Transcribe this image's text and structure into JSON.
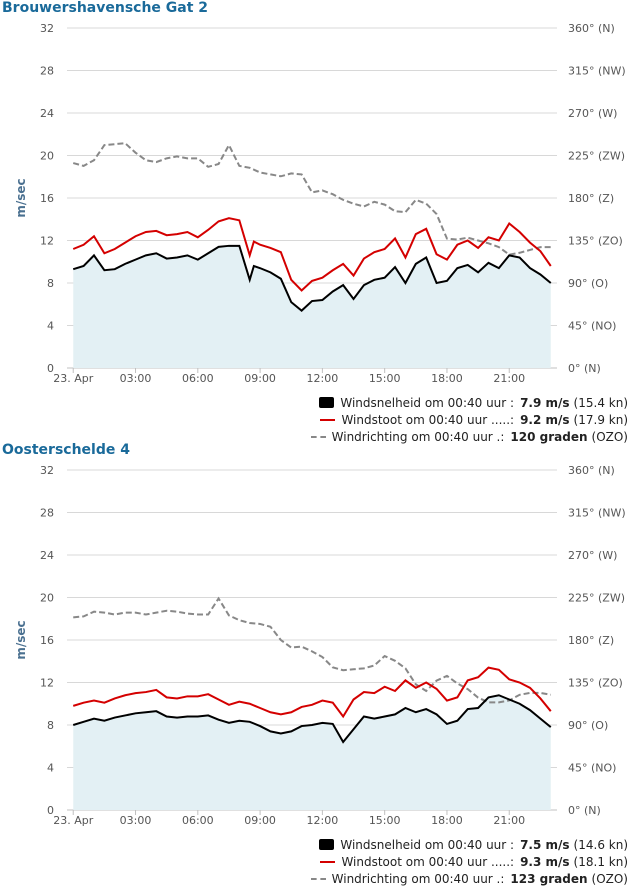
{
  "colors": {
    "title": "#1a6a9a",
    "speed": "#000000",
    "gust": "#d40000",
    "direction": "#888888",
    "area": "#e3f0f4",
    "grid": "#d8d8d8",
    "axis_text": "#555555"
  },
  "panels": [
    {
      "title": "Brouwershavensche Gat 2",
      "legend": [
        {
          "label": "Windsnelheid om 00:40 uur :",
          "value": "7.9 m/s",
          "extra": "(15.4 kn)"
        },
        {
          "label": "Windstoot om 00:40 uur .....:",
          "value": "9.2 m/s",
          "extra": "(17.9 kn)"
        },
        {
          "label": "Windrichting om 00:40 uur .:",
          "value": "120 graden",
          "extra": "(OZO)"
        }
      ]
    },
    {
      "title": "Oosterschelde 4",
      "legend": [
        {
          "label": "Windsnelheid om 00:40 uur :",
          "value": "7.5 m/s",
          "extra": "(14.6 kn)"
        },
        {
          "label": "Windstoot om 00:40 uur .....:",
          "value": "9.3 m/s",
          "extra": "(18.1 kn)"
        },
        {
          "label": "Windrichting om 00:40 uur .:",
          "value": "123 graden",
          "extra": "(OZO)"
        }
      ]
    }
  ],
  "chart_data": [
    {
      "type": "line",
      "title": "Brouwershavensche Gat 2",
      "ylabel": "m/sec",
      "ylim": [
        0,
        32
      ],
      "y_ticks": [
        "0",
        "4",
        "8",
        "12",
        "16",
        "20",
        "24",
        "28",
        "32"
      ],
      "y2_ticks": [
        "0° (N)",
        "45° (NO)",
        "90° (O)",
        "135° (ZO)",
        "180° (Z)",
        "225° (ZW)",
        "270° (W)",
        "315° (NW)",
        "360° (N)"
      ],
      "x_hours_range": [
        -0.3,
        23.3
      ],
      "x_ticks": [
        {
          "h": 0,
          "label": "23. Apr"
        },
        {
          "h": 3,
          "label": "03:00"
        },
        {
          "h": 6,
          "label": "06:00"
        },
        {
          "h": 9,
          "label": "09:00"
        },
        {
          "h": 12,
          "label": "12:00"
        },
        {
          "h": 15,
          "label": "15:00"
        },
        {
          "h": 18,
          "label": "18:00"
        },
        {
          "h": 21,
          "label": "21:00"
        }
      ],
      "legend_placement": "bottom-right",
      "series": [
        {
          "name": "Windsnelheid",
          "unit": "m/s",
          "x": [
            0,
            0.5,
            1,
            1.5,
            2,
            2.5,
            3,
            3.5,
            4,
            4.5,
            5,
            5.5,
            6,
            6.5,
            7,
            7.5,
            8,
            8.5,
            8.7,
            9,
            9.5,
            10,
            10.5,
            11,
            11.5,
            12,
            12.5,
            13,
            13.5,
            14,
            14.5,
            15,
            15.5,
            16,
            16.5,
            17,
            17.5,
            18,
            18.5,
            19,
            19.5,
            20,
            20.5,
            21,
            21.5,
            22,
            22.5,
            23
          ],
          "y": [
            9.3,
            9.6,
            10.6,
            9.2,
            9.3,
            9.8,
            10.2,
            10.6,
            10.8,
            10.3,
            10.4,
            10.6,
            10.2,
            10.8,
            11.4,
            11.5,
            11.5,
            8.3,
            9.6,
            9.4,
            9.0,
            8.4,
            6.2,
            5.4,
            6.3,
            6.4,
            7.2,
            7.8,
            6.5,
            7.8,
            8.3,
            8.5,
            9.5,
            8.0,
            9.8,
            10.4,
            8.0,
            8.2,
            9.4,
            9.7,
            9.0,
            9.9,
            9.4,
            10.6,
            10.4,
            9.4,
            8.8,
            8.0
          ]
        },
        {
          "name": "Windstoot",
          "unit": "m/s",
          "x": [
            0,
            0.5,
            1,
            1.5,
            2,
            2.5,
            3,
            3.5,
            4,
            4.5,
            5,
            5.5,
            6,
            6.5,
            7,
            7.5,
            8,
            8.5,
            8.7,
            9,
            9.5,
            10,
            10.5,
            11,
            11.5,
            12,
            12.5,
            13,
            13.5,
            14,
            14.5,
            15,
            15.5,
            16,
            16.5,
            17,
            17.5,
            18,
            18.5,
            19,
            19.5,
            20,
            20.5,
            21,
            21.5,
            22,
            22.5,
            23
          ],
          "y": [
            11.2,
            11.6,
            12.4,
            10.8,
            11.2,
            11.8,
            12.4,
            12.8,
            12.9,
            12.5,
            12.6,
            12.8,
            12.3,
            13.0,
            13.8,
            14.1,
            13.9,
            10.6,
            11.9,
            11.6,
            11.3,
            10.9,
            8.3,
            7.3,
            8.2,
            8.5,
            9.2,
            9.8,
            8.7,
            10.3,
            10.9,
            11.2,
            12.2,
            10.4,
            12.6,
            13.1,
            10.7,
            10.2,
            11.6,
            12.0,
            11.3,
            12.3,
            12.0,
            13.6,
            12.8,
            11.8,
            11.0,
            9.6
          ]
        },
        {
          "name": "Windrichting",
          "unit": "graden",
          "x": [
            0,
            0.5,
            1,
            1.5,
            2,
            2.5,
            3,
            3.5,
            4,
            4.5,
            5,
            5.5,
            6,
            6.5,
            7,
            7.5,
            8,
            8.5,
            9,
            9.5,
            10,
            10.5,
            11,
            11.5,
            12,
            12.5,
            13,
            13.5,
            14,
            14.5,
            15,
            15.5,
            16,
            16.5,
            17,
            17.5,
            18,
            18.5,
            19,
            19.5,
            20,
            20.5,
            21,
            21.5,
            22,
            22.5,
            23
          ],
          "y": [
            217,
            214,
            220,
            236,
            237,
            238,
            228,
            220,
            218,
            222,
            224,
            222,
            222,
            213,
            216,
            236,
            214,
            212,
            207,
            205,
            203,
            206,
            205,
            186,
            188,
            184,
            178,
            174,
            171,
            176,
            173,
            166,
            165,
            178,
            174,
            163,
            137,
            136,
            138,
            135,
            132,
            128,
            120,
            122,
            125,
            128,
            128
          ]
        }
      ]
    },
    {
      "type": "line",
      "title": "Oosterschelde 4",
      "ylabel": "m/sec",
      "ylim": [
        0,
        32
      ],
      "y_ticks": [
        "0",
        "4",
        "8",
        "12",
        "16",
        "20",
        "24",
        "28",
        "32"
      ],
      "y2_ticks": [
        "0° (N)",
        "45° (NO)",
        "90° (O)",
        "135° (ZO)",
        "180° (Z)",
        "225° (ZW)",
        "270° (W)",
        "315° (NW)",
        "360° (N)"
      ],
      "x_hours_range": [
        -0.3,
        23.3
      ],
      "x_ticks": [
        {
          "h": 0,
          "label": "23. Apr"
        },
        {
          "h": 3,
          "label": "03:00"
        },
        {
          "h": 6,
          "label": "06:00"
        },
        {
          "h": 9,
          "label": "09:00"
        },
        {
          "h": 12,
          "label": "12:00"
        },
        {
          "h": 15,
          "label": "15:00"
        },
        {
          "h": 18,
          "label": "18:00"
        },
        {
          "h": 21,
          "label": "21:00"
        }
      ],
      "legend_placement": "bottom-right",
      "series": [
        {
          "name": "Windsnelheid",
          "unit": "m/s",
          "x": [
            0,
            0.5,
            1,
            1.5,
            2,
            2.5,
            3,
            3.5,
            4,
            4.5,
            5,
            5.5,
            6,
            6.5,
            7,
            7.5,
            8,
            8.5,
            9,
            9.5,
            10,
            10.5,
            11,
            11.5,
            12,
            12.5,
            13,
            13.5,
            14,
            14.5,
            15,
            15.5,
            16,
            16.5,
            17,
            17.5,
            18,
            18.5,
            19,
            19.5,
            20,
            20.5,
            21,
            21.5,
            22,
            22.5,
            23
          ],
          "y": [
            8.0,
            8.3,
            8.6,
            8.4,
            8.7,
            8.9,
            9.1,
            9.2,
            9.3,
            8.8,
            8.7,
            8.8,
            8.8,
            8.9,
            8.5,
            8.2,
            8.4,
            8.3,
            7.9,
            7.4,
            7.2,
            7.4,
            7.9,
            8.0,
            8.2,
            8.1,
            6.4,
            7.6,
            8.8,
            8.6,
            8.8,
            9.0,
            9.6,
            9.2,
            9.5,
            9.0,
            8.1,
            8.4,
            9.5,
            9.6,
            10.6,
            10.8,
            10.4,
            10.0,
            9.4,
            8.6,
            7.8
          ]
        },
        {
          "name": "Windstoot",
          "unit": "m/s",
          "x": [
            0,
            0.5,
            1,
            1.5,
            2,
            2.5,
            3,
            3.5,
            4,
            4.5,
            5,
            5.5,
            6,
            6.5,
            7,
            7.5,
            8,
            8.5,
            9,
            9.5,
            10,
            10.5,
            11,
            11.5,
            12,
            12.5,
            13,
            13.5,
            14,
            14.5,
            15,
            15.5,
            16,
            16.5,
            17,
            17.5,
            18,
            18.5,
            19,
            19.5,
            20,
            20.5,
            21,
            21.5,
            22,
            22.5,
            23
          ],
          "y": [
            9.8,
            10.1,
            10.3,
            10.1,
            10.5,
            10.8,
            11.0,
            11.1,
            11.3,
            10.6,
            10.5,
            10.7,
            10.7,
            10.9,
            10.4,
            9.9,
            10.2,
            10.0,
            9.6,
            9.2,
            9.0,
            9.2,
            9.7,
            9.9,
            10.3,
            10.1,
            8.8,
            10.4,
            11.1,
            11.0,
            11.6,
            11.2,
            12.2,
            11.5,
            12.0,
            11.4,
            10.3,
            10.6,
            12.2,
            12.5,
            13.4,
            13.2,
            12.3,
            12.0,
            11.5,
            10.5,
            9.3
          ]
        },
        {
          "name": "Windrichting",
          "unit": "graden",
          "x": [
            0,
            0.5,
            1,
            1.5,
            2,
            2.5,
            3,
            3.5,
            4,
            4.5,
            5,
            5.5,
            6,
            6.5,
            7,
            7.5,
            8,
            8.5,
            9,
            9.5,
            10,
            10.5,
            11,
            11.5,
            12,
            12.5,
            13,
            13.5,
            14,
            14.5,
            15,
            15.5,
            16,
            16.5,
            17,
            17.5,
            18,
            18.5,
            19,
            19.5,
            20,
            20.5,
            21,
            21.5,
            22,
            22.5,
            23
          ],
          "y": [
            204,
            205,
            210,
            209,
            207,
            209,
            209,
            207,
            209,
            211,
            210,
            208,
            207,
            207,
            224,
            206,
            201,
            198,
            197,
            194,
            180,
            172,
            173,
            168,
            162,
            151,
            148,
            149,
            150,
            153,
            163,
            158,
            150,
            133,
            126,
            137,
            142,
            134,
            128,
            119,
            114,
            114,
            116,
            122,
            124,
            124,
            122
          ]
        }
      ]
    }
  ]
}
